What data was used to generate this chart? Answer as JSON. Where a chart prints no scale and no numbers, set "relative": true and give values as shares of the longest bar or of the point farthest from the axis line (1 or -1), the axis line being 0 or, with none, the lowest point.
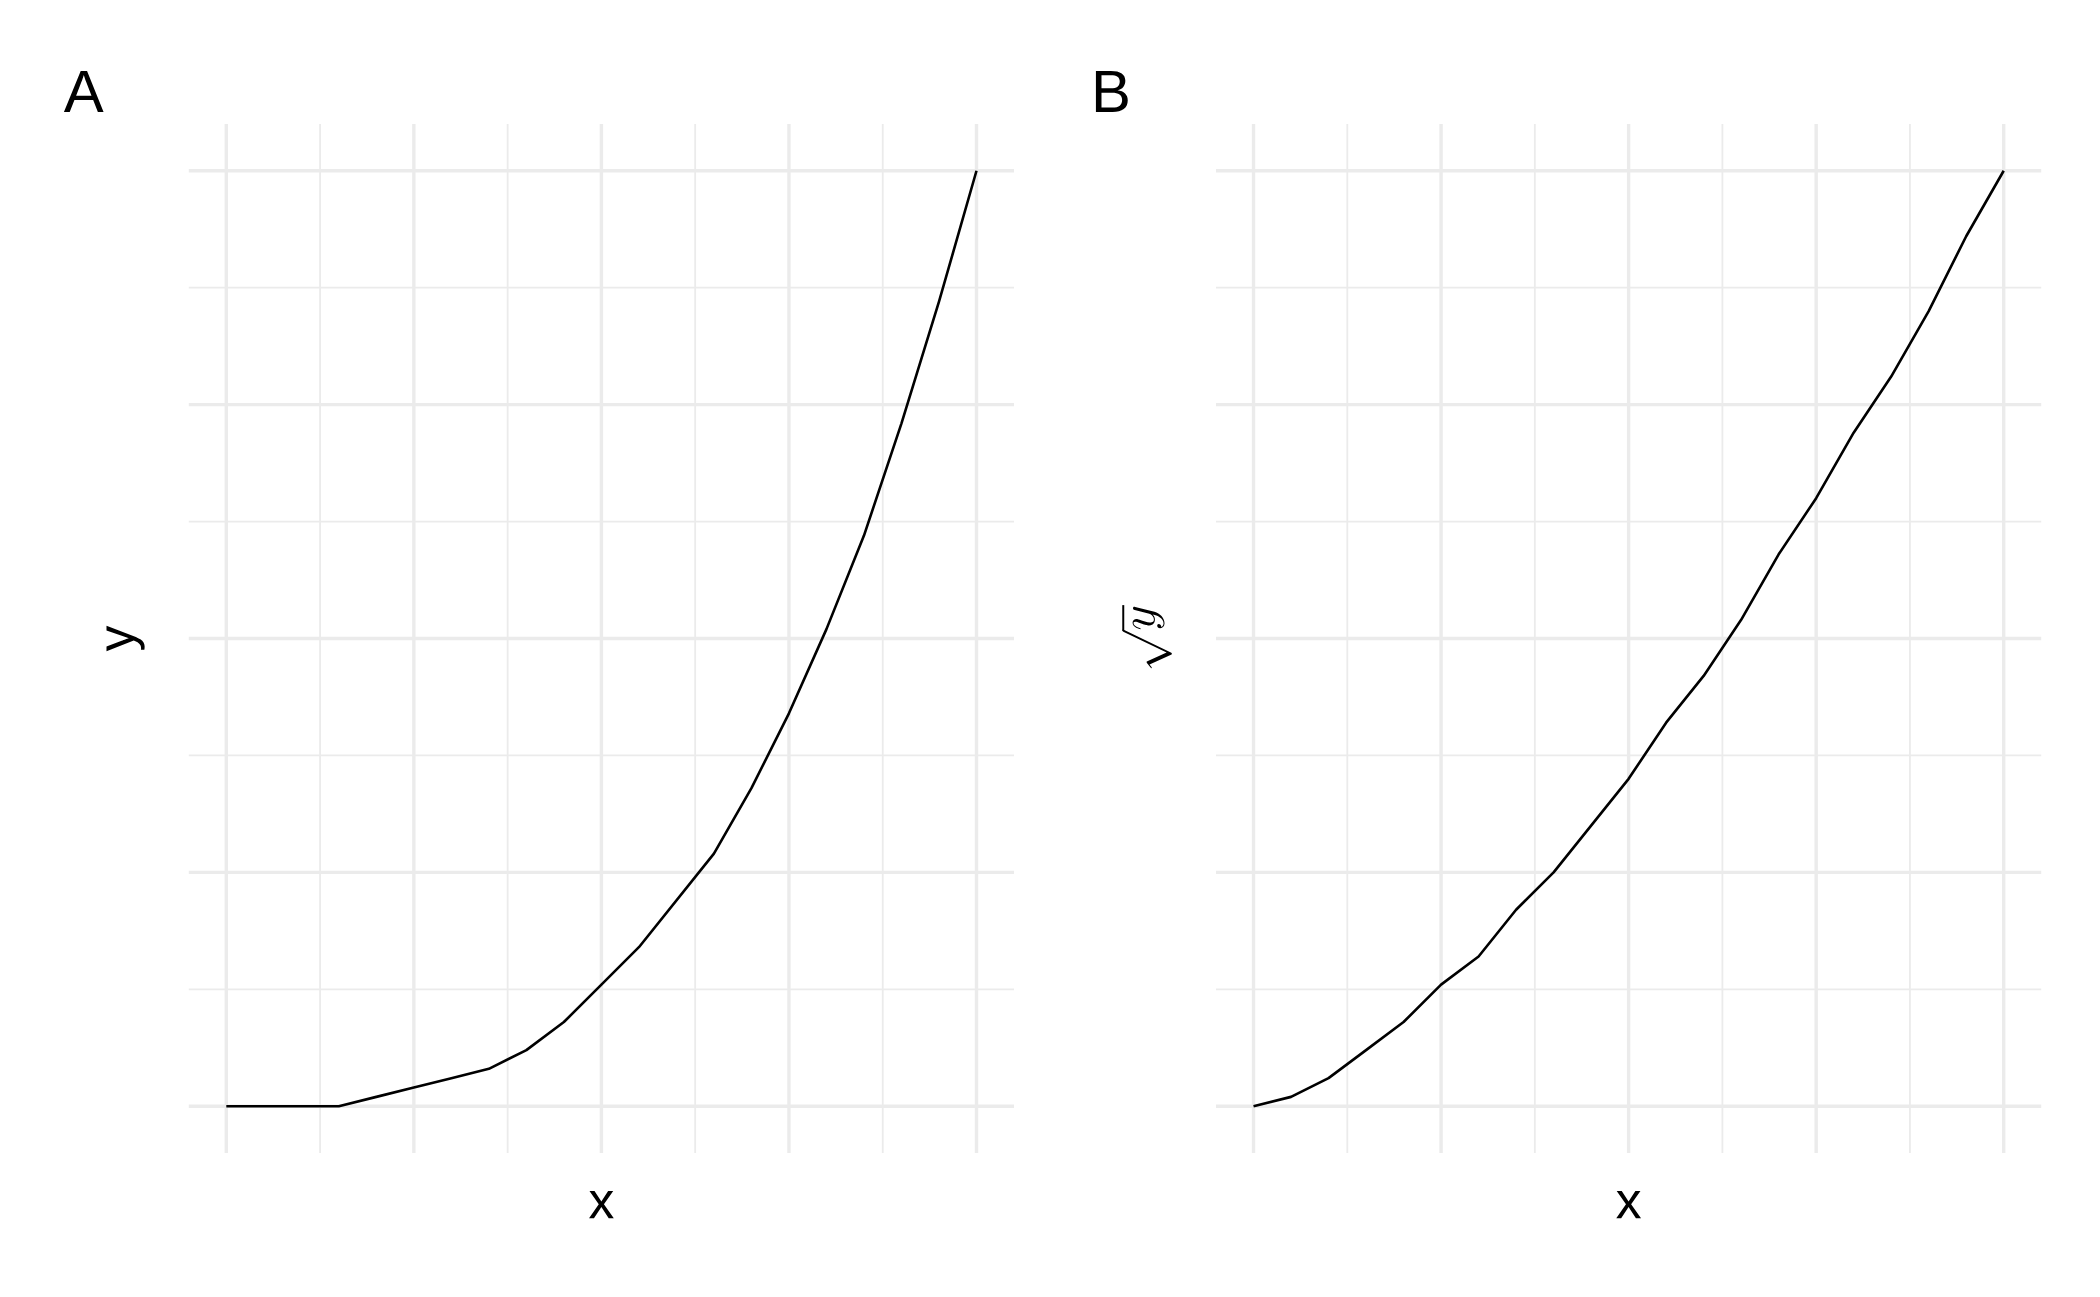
{
  "chart_data": [
    {
      "type": "line",
      "title": "A",
      "xlabel": "x",
      "ylabel": "y",
      "relative": true,
      "grid": true,
      "categories": [
        null,
        null,
        null,
        null,
        null,
        null,
        null,
        null,
        null,
        null,
        null,
        null,
        null,
        null,
        null,
        null,
        null,
        null,
        null,
        null,
        null
      ],
      "series": [
        {
          "color": "#000000",
          "values": [
            0,
            0,
            0,
            0,
            0.01,
            0.02,
            0.03,
            0.04,
            0.06,
            0.09,
            0.13,
            0.17,
            0.22,
            0.27,
            0.34,
            0.42,
            0.51,
            0.61,
            0.73,
            0.86,
            1
          ]
        }
      ]
    },
    {
      "type": "line",
      "title": "B",
      "xlabel": "x",
      "ylabel": "\\sqrt{y}",
      "relative": true,
      "grid": true,
      "categories": [
        null,
        null,
        null,
        null,
        null,
        null,
        null,
        null,
        null,
        null,
        null,
        null,
        null,
        null,
        null,
        null,
        null,
        null,
        null,
        null,
        null
      ],
      "series": [
        {
          "color": "#000000",
          "values": [
            0,
            0.01,
            0.03,
            0.06,
            0.09,
            0.13,
            0.16,
            0.21,
            0.25,
            0.3,
            0.35,
            0.41,
            0.46,
            0.52,
            0.59,
            0.65,
            0.72,
            0.78,
            0.85,
            0.93,
            1
          ]
        }
      ]
    }
  ]
}
